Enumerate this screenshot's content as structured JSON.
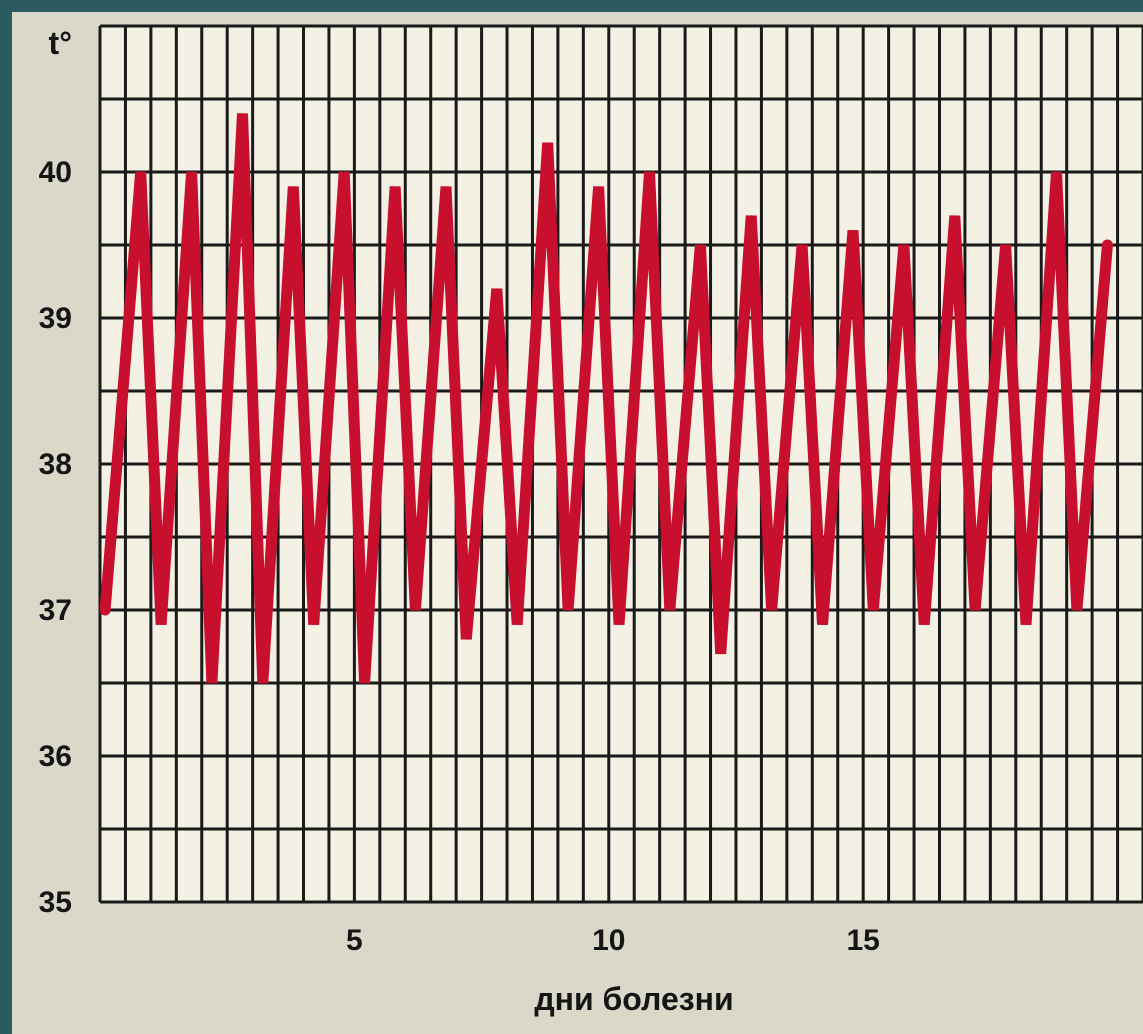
{
  "chart_data": {
    "type": "line",
    "title": "",
    "xlabel": "дни болезни",
    "ylabel": "t°",
    "xlim": [
      0,
      20.5
    ],
    "ylim": [
      35,
      41
    ],
    "x_ticks": [
      "5",
      "10",
      "15"
    ],
    "x_tick_values": [
      5,
      10,
      15
    ],
    "y_ticks": [
      "35",
      "36",
      "37",
      "38",
      "39",
      "40"
    ],
    "y_tick_values": [
      35,
      36,
      37,
      38,
      39,
      40
    ],
    "grid": true,
    "line_color": "#c8102e",
    "series": [
      {
        "name": "",
        "x": [
          0.1,
          0.8,
          1.2,
          1.8,
          2.2,
          2.8,
          3.2,
          3.8,
          4.2,
          4.8,
          5.2,
          5.8,
          6.2,
          6.8,
          7.2,
          7.8,
          8.2,
          8.8,
          9.2,
          9.8,
          10.2,
          10.8,
          11.2,
          11.8,
          12.2,
          12.8,
          13.2,
          13.8,
          14.2,
          14.8,
          15.2,
          15.8,
          16.2,
          16.8,
          17.2,
          17.8,
          18.2,
          18.8,
          19.2,
          19.8
        ],
        "y": [
          37.0,
          40.0,
          36.9,
          40.0,
          36.5,
          40.4,
          36.5,
          39.9,
          36.9,
          40.0,
          36.5,
          39.9,
          37.0,
          39.9,
          36.8,
          39.2,
          36.9,
          40.2,
          37.0,
          39.9,
          36.9,
          40.0,
          37.0,
          39.5,
          36.7,
          39.7,
          37.0,
          39.5,
          36.9,
          39.6,
          37.0,
          39.5,
          36.9,
          39.7,
          37.0,
          39.5,
          36.9,
          40.0,
          37.0,
          39.5
        ]
      }
    ]
  },
  "decor": {
    "accent_color": "#2b5a61",
    "grid_color": "#1a1a1a",
    "paper_color": "#f3f1e4"
  }
}
